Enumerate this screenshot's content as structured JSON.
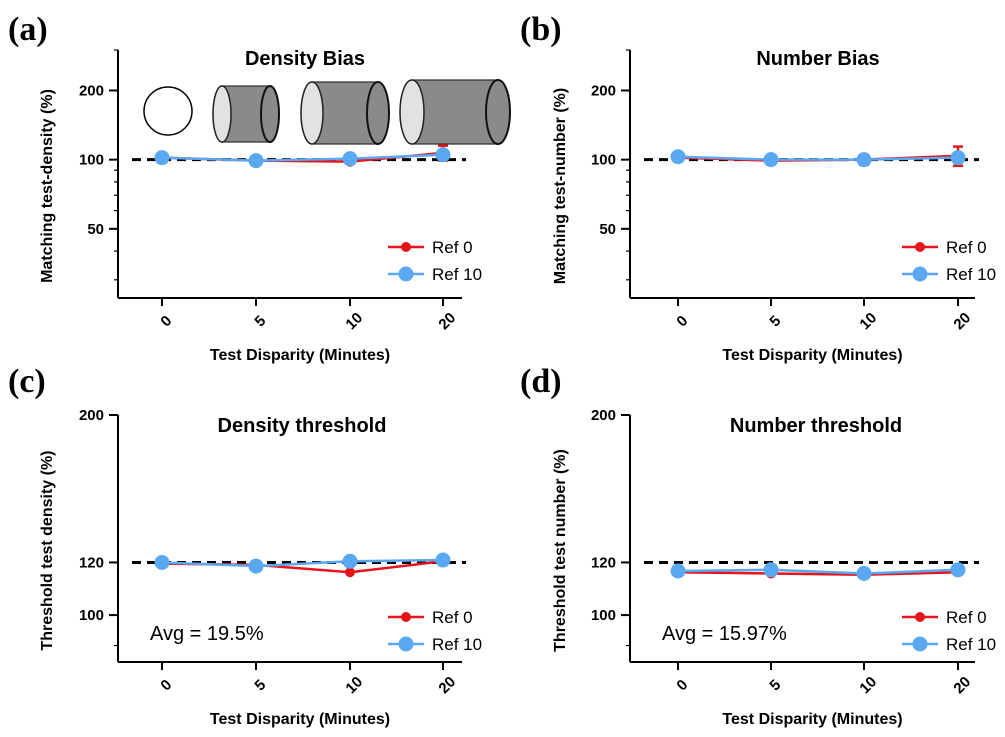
{
  "colors": {
    "ref0": "#e8141b",
    "ref10": "#5aa7f2",
    "axis": "#000000"
  },
  "panel_letters": [
    "(a)",
    "(b)",
    "(c)",
    "(d)"
  ],
  "legend": {
    "ref0": "Ref 0",
    "ref10": "Ref 10"
  },
  "chart_data": [
    {
      "type": "line",
      "title": "Density Bias",
      "xlabel": "Test Disparity (Minutes)",
      "ylabel": "Matching test-density (%)",
      "categories": [
        "0",
        "5",
        "10",
        "20"
      ],
      "y_scale": "log",
      "ylim": [
        25,
        300
      ],
      "yticks": [
        50,
        100,
        200
      ],
      "reference_line": 100,
      "icons": [
        "circle",
        "cylinder",
        "cylinder",
        "cylinder"
      ],
      "series": [
        {
          "name": "Ref 0",
          "values": [
            102,
            99,
            98,
            107
          ],
          "errors": [
            0,
            0,
            2,
            8
          ]
        },
        {
          "name": "Ref 10",
          "values": [
            102,
            99,
            101,
            105
          ],
          "errors": [
            0,
            0,
            0,
            0
          ]
        }
      ]
    },
    {
      "type": "line",
      "title": "Number Bias",
      "xlabel": "Test Disparity (Minutes)",
      "ylabel": "Matching test-number (%)",
      "categories": [
        "0",
        "5",
        "10",
        "20"
      ],
      "y_scale": "log",
      "ylim": [
        25,
        300
      ],
      "yticks": [
        50,
        100,
        200
      ],
      "reference_line": 100,
      "series": [
        {
          "name": "Ref 0",
          "values": [
            102,
            99,
            100,
            104
          ],
          "errors": [
            0,
            0,
            5,
            10
          ]
        },
        {
          "name": "Ref 10",
          "values": [
            103,
            100,
            100,
            102
          ],
          "errors": [
            0,
            0,
            4,
            0
          ]
        }
      ]
    },
    {
      "type": "line",
      "title": "Density threshold",
      "xlabel": "Test Disparity (Minutes)",
      "ylabel": "Threshold test density (%)",
      "categories": [
        "0",
        "5",
        "10",
        "20"
      ],
      "y_scale": "log",
      "ylim": [
        85,
        200
      ],
      "yticks": [
        100,
        120,
        200
      ],
      "reference_line": 120,
      "annotation": "Avg = 19.5%",
      "series": [
        {
          "name": "Ref 0",
          "values": [
            119.5,
            119,
            116,
            120.5
          ],
          "errors": [
            0,
            0,
            0,
            0
          ]
        },
        {
          "name": "Ref 10",
          "values": [
            120,
            118.5,
            120.5,
            121
          ],
          "errors": [
            0,
            0,
            0,
            0
          ]
        }
      ]
    },
    {
      "type": "line",
      "title": "Number threshold",
      "xlabel": "Test Disparity (Minutes)",
      "ylabel": "Threshold test number (%)",
      "categories": [
        "0",
        "5",
        "10",
        "20"
      ],
      "y_scale": "log",
      "ylim": [
        85,
        200
      ],
      "yticks": [
        100,
        120,
        200
      ],
      "reference_line": 120,
      "annotation": "Avg = 15.97%",
      "series": [
        {
          "name": "Ref 0",
          "values": [
            116,
            115.5,
            115,
            116
          ],
          "errors": [
            0,
            0,
            0,
            0
          ]
        },
        {
          "name": "Ref 10",
          "values": [
            116.5,
            117,
            115.5,
            117
          ],
          "errors": [
            0,
            0,
            0,
            0
          ]
        }
      ]
    }
  ]
}
